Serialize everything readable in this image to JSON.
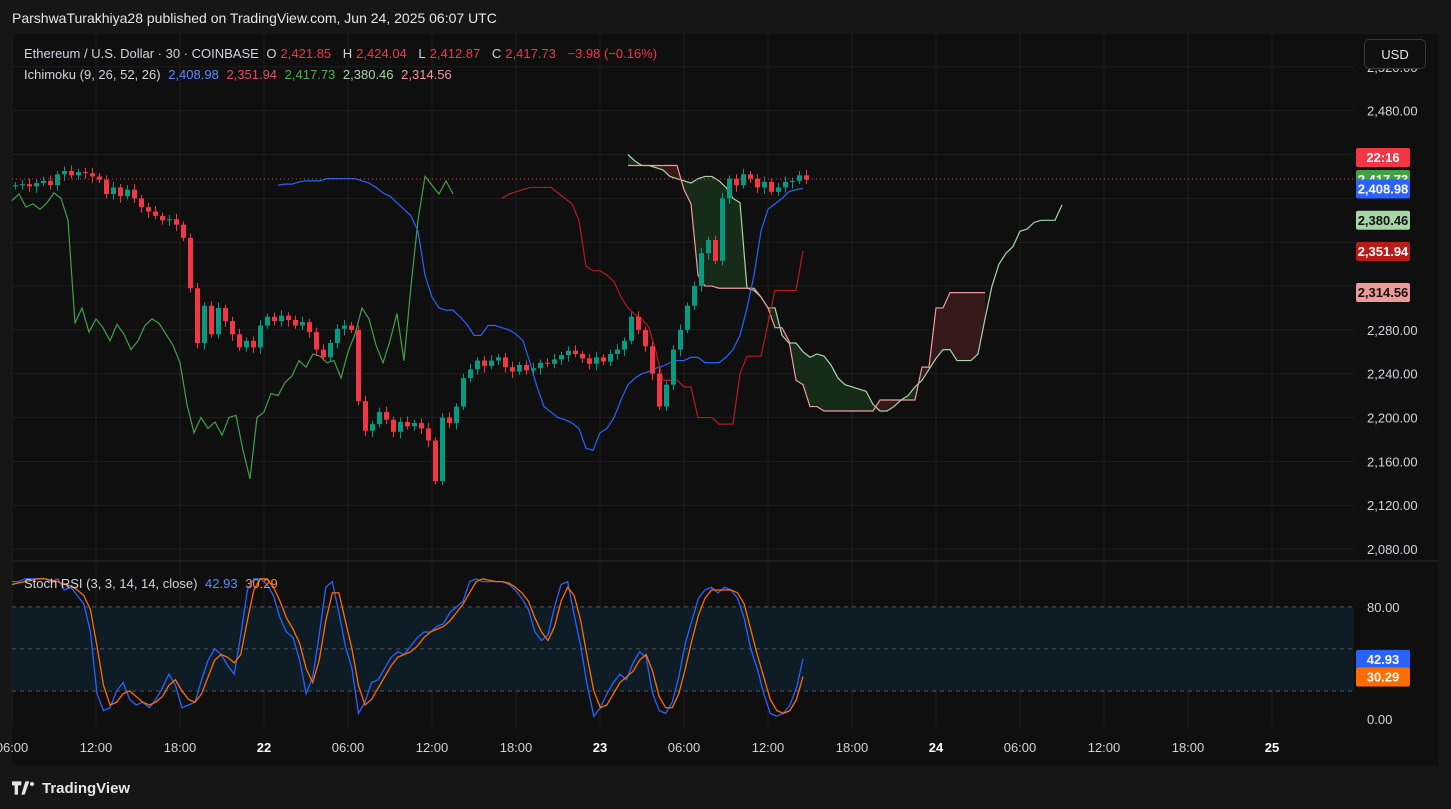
{
  "caption": {
    "text": "ParshwaTurakhiya28 published on TradingView.com, Jun 24, 2025 06:07 UTC"
  },
  "legend": {
    "symbol": "Ethereum / U.S. Dollar · 30 · COINBASE",
    "o_label": "O",
    "o": "2,421.85",
    "h_label": "H",
    "h": "2,424.04",
    "l_label": "L",
    "l": "2,412.87",
    "c_label": "C",
    "c": "2,417.73",
    "change": "−3.98 (−0.16%)",
    "ichimoku_name": "Ichimoku (9, 26, 52, 26)",
    "ichimoku_values": [
      "2,408.98",
      "2,351.94",
      "2,417.73",
      "2,380.46",
      "2,314.56"
    ],
    "stoch_name": "Stoch RSI (3, 3, 14, 14, close)",
    "stoch_values": [
      "42.93",
      "30.29"
    ]
  },
  "currency_button": "USD",
  "footer": {
    "brand": "TradingView",
    "logo_icon": "tradingview-logo-icon"
  },
  "colors": {
    "up": "#089981",
    "down": "#f23645",
    "tenkan": "#2962ff",
    "kijun": "#b71c1c",
    "chikou": "#43a047",
    "span_a": "#a5d6a7",
    "span_b": "#ef9a9a",
    "cloud_bull": "#17301b",
    "cloud_bear": "#3a1a1a",
    "k": "#2962ff",
    "d": "#ff6d00"
  },
  "chart_data": [
    {
      "type": "candlestick",
      "title": "Ethereum / U.S. Dollar · 30 · COINBASE",
      "ylim": [
        2070,
        2550
      ],
      "y_ticks": [
        2520,
        2480,
        2440,
        2400,
        2360,
        2320,
        2280,
        2240,
        2200,
        2160,
        2120,
        2080
      ],
      "y_tick_labels": [
        "2,520.00",
        "2,480.00",
        "",
        "",
        "",
        "",
        "2,280.00",
        "2,240.00",
        "2,200.00",
        "2,160.00",
        "2,120.00",
        "2,080.00"
      ],
      "x_tick_labels": [
        "06:00",
        "12:00",
        "18:00",
        "22",
        "06:00",
        "12:00",
        "18:00",
        "23",
        "06:00",
        "12:00",
        "18:00",
        "24",
        "06:00",
        "12:00",
        "18:00",
        "25"
      ],
      "x_tick_bars": [
        0,
        12,
        24,
        36,
        48,
        60,
        72,
        84,
        96,
        108,
        120,
        132,
        144,
        156,
        168,
        180
      ],
      "last_price": 2417.73,
      "countdown": "22:16",
      "price_labels": [
        {
          "value": 2417.73,
          "text": "2,417.73",
          "series": "chikou"
        },
        {
          "value": 2408.98,
          "text": "2,408.98",
          "series": "tenkan"
        },
        {
          "value": 2380.46,
          "text": "2,380.46",
          "series": "span_a"
        },
        {
          "value": 2351.94,
          "text": "2,351.94",
          "series": "kijun"
        },
        {
          "value": 2314.56,
          "text": "2,314.56",
          "series": "span_b"
        }
      ],
      "series_ohlc_close": [
        2412,
        2413,
        2411,
        2414,
        2416,
        2412,
        2422,
        2425,
        2421,
        2424,
        2423,
        2420,
        2417,
        2404,
        2410,
        2402,
        2408,
        2400,
        2392,
        2388,
        2384,
        2380,
        2381,
        2376,
        2364,
        2318,
        2268,
        2302,
        2276,
        2300,
        2288,
        2276,
        2264,
        2270,
        2264,
        2284,
        2292,
        2288,
        2293,
        2289,
        2284,
        2287,
        2278,
        2262,
        2255,
        2268,
        2281,
        2284,
        2280,
        2215,
        2188,
        2194,
        2205,
        2198,
        2187,
        2196,
        2192,
        2195,
        2190,
        2179,
        2142,
        2200,
        2195,
        2210,
        2236,
        2244,
        2252,
        2247,
        2252,
        2255,
        2246,
        2242,
        2248,
        2243,
        2245,
        2250,
        2249,
        2253,
        2257,
        2261,
        2258,
        2254,
        2249,
        2255,
        2251,
        2258,
        2262,
        2270,
        2292,
        2280,
        2265,
        2240,
        2210,
        2230,
        2262,
        2280,
        2302,
        2320,
        2350,
        2362,
        2343,
        2400,
        2418,
        2412,
        2422,
        2418,
        2410,
        2415,
        2406,
        2410,
        2415,
        2416,
        2421,
        2417
      ],
      "ichimoku": {
        "tenkan": [
          2412,
          2413,
          2413,
          2415,
          2416,
          2416,
          2416,
          2418,
          2418,
          2418,
          2418,
          2418,
          2416,
          2414,
          2410,
          2405,
          2402,
          2396,
          2390,
          2384,
          2370,
          2330,
          2310,
          2300,
          2298,
          2298,
          2292,
          2285,
          2275,
          2275,
          2284,
          2284,
          2282,
          2280,
          2276,
          2270,
          2250,
          2228,
          2210,
          2205,
          2200,
          2198,
          2195,
          2190,
          2172,
          2170,
          2186,
          2190,
          2200,
          2216,
          2230,
          2236,
          2240,
          2242,
          2245,
          2247,
          2250,
          2252,
          2252,
          2255,
          2255,
          2250,
          2250,
          2250,
          2255,
          2262,
          2275,
          2300,
          2330,
          2370,
          2390,
          2395,
          2400,
          2406,
          2408,
          2409
        ],
        "kijun": [
          2400,
          2404,
          2406,
          2408,
          2410,
          2410,
          2410,
          2410,
          2405,
          2400,
          2395,
          2380,
          2338,
          2334,
          2334,
          2330,
          2324,
          2310,
          2300,
          2294,
          2290,
          2282,
          2260,
          2234,
          2234,
          2234,
          2228,
          2228,
          2200,
          2200,
          2200,
          2194,
          2194,
          2194,
          2240,
          2256,
          2256,
          2256,
          2286,
          2316,
          2316,
          2316,
          2316,
          2352
        ],
        "chikou": [
          2398,
          2404,
          2392,
          2395,
          2390,
          2396,
          2405,
          2400,
          2380,
          2286,
          2300,
          2278,
          2290,
          2282,
          2270,
          2285,
          2276,
          2262,
          2270,
          2284,
          2290,
          2286,
          2276,
          2266,
          2250,
          2212,
          2186,
          2200,
          2190,
          2196,
          2184,
          2200,
          2202,
          2170,
          2144,
          2200,
          2205,
          2222,
          2220,
          2232,
          2238,
          2252,
          2246,
          2258,
          2256,
          2250,
          2252,
          2236,
          2260,
          2276,
          2300,
          2290,
          2266,
          2250,
          2270,
          2295,
          2252,
          2320,
          2380,
          2420,
          2412,
          2404,
          2416,
          2404
        ],
        "span_a": [
          2440,
          2434,
          2430,
          2430,
          2428,
          2426,
          2420,
          2418,
          2416,
          2414,
          2418,
          2420,
          2420,
          2416,
          2410,
          2400,
          2396,
          2318,
          2316,
          2310,
          2300,
          2300,
          2275,
          2268,
          2268,
          2260,
          2255,
          2258,
          2256,
          2248,
          2236,
          2230,
          2228,
          2226,
          2224,
          2212,
          2206,
          2206,
          2210,
          2216,
          2220,
          2228,
          2234,
          2244,
          2254,
          2262,
          2262,
          2252,
          2252,
          2252,
          2258,
          2290,
          2320,
          2340,
          2350,
          2356,
          2370,
          2372,
          2378,
          2380,
          2380,
          2380,
          2394
        ],
        "span_b": [
          2430,
          2430,
          2430,
          2430,
          2430,
          2430,
          2430,
          2430,
          2408,
          2395,
          2330,
          2320,
          2320,
          2318,
          2318,
          2318,
          2318,
          2318,
          2318,
          2310,
          2300,
          2282,
          2282,
          2270,
          2234,
          2230,
          2210,
          2210,
          2206,
          2206,
          2206,
          2206,
          2206,
          2206,
          2206,
          2206,
          2216,
          2216,
          2216,
          2216,
          2216,
          2216,
          2246,
          2246,
          2300,
          2300,
          2314,
          2314,
          2314,
          2314,
          2314,
          2314
        ]
      }
    },
    {
      "type": "line",
      "title": "Stoch RSI (3, 3, 14, 14, close)",
      "ylim": [
        -5,
        112
      ],
      "y_ticks": [
        80,
        50,
        20,
        0
      ],
      "y_tick_labels": [
        "80.00",
        "",
        "",
        "0.00"
      ],
      "band": [
        20,
        80
      ],
      "series": [
        {
          "name": "K",
          "value_label": "42.93",
          "values": [
            98,
            98,
            100,
            100,
            100,
            100,
            98,
            100,
            92,
            94,
            88,
            82,
            62,
            18,
            6,
            8,
            20,
            26,
            14,
            10,
            12,
            8,
            14,
            22,
            32,
            24,
            8,
            10,
            12,
            28,
            42,
            50,
            46,
            38,
            32,
            60,
            92,
            100,
            100,
            96,
            88,
            72,
            62,
            58,
            42,
            18,
            30,
            60,
            94,
            98,
            76,
            52,
            36,
            4,
            12,
            26,
            28,
            36,
            44,
            48,
            46,
            52,
            58,
            62,
            62,
            66,
            68,
            76,
            80,
            84,
            98,
            100,
            98,
            98,
            98,
            98,
            96,
            92,
            86,
            78,
            62,
            56,
            60,
            80,
            96,
            98,
            74,
            52,
            24,
            2,
            8,
            18,
            26,
            32,
            28,
            40,
            48,
            44,
            18,
            6,
            4,
            12,
            30,
            54,
            70,
            86,
            92,
            94,
            90,
            94,
            92,
            86,
            72,
            50,
            36,
            18,
            4,
            2,
            4,
            10,
            22,
            42.93
          ]
        },
        {
          "name": "D",
          "value_label": "30.29",
          "values": [
            96,
            97,
            98,
            99,
            100,
            100,
            99,
            98,
            96,
            95,
            92,
            88,
            78,
            52,
            24,
            10,
            12,
            18,
            20,
            16,
            12,
            10,
            12,
            16,
            24,
            28,
            20,
            14,
            12,
            18,
            30,
            42,
            46,
            44,
            40,
            46,
            70,
            92,
            100,
            100,
            94,
            84,
            72,
            64,
            54,
            36,
            26,
            42,
            70,
            90,
            90,
            70,
            50,
            24,
            10,
            14,
            22,
            30,
            38,
            44,
            46,
            48,
            52,
            58,
            62,
            64,
            66,
            70,
            76,
            82,
            90,
            98,
            100,
            99,
            98,
            98,
            97,
            94,
            90,
            84,
            72,
            62,
            56,
            66,
            84,
            94,
            88,
            70,
            44,
            20,
            8,
            10,
            18,
            26,
            30,
            34,
            42,
            46,
            34,
            16,
            8,
            8,
            18,
            36,
            56,
            74,
            86,
            92,
            92,
            92,
            92,
            90,
            82,
            64,
            46,
            30,
            14,
            6,
            4,
            6,
            14,
            30.29
          ]
        }
      ]
    }
  ]
}
